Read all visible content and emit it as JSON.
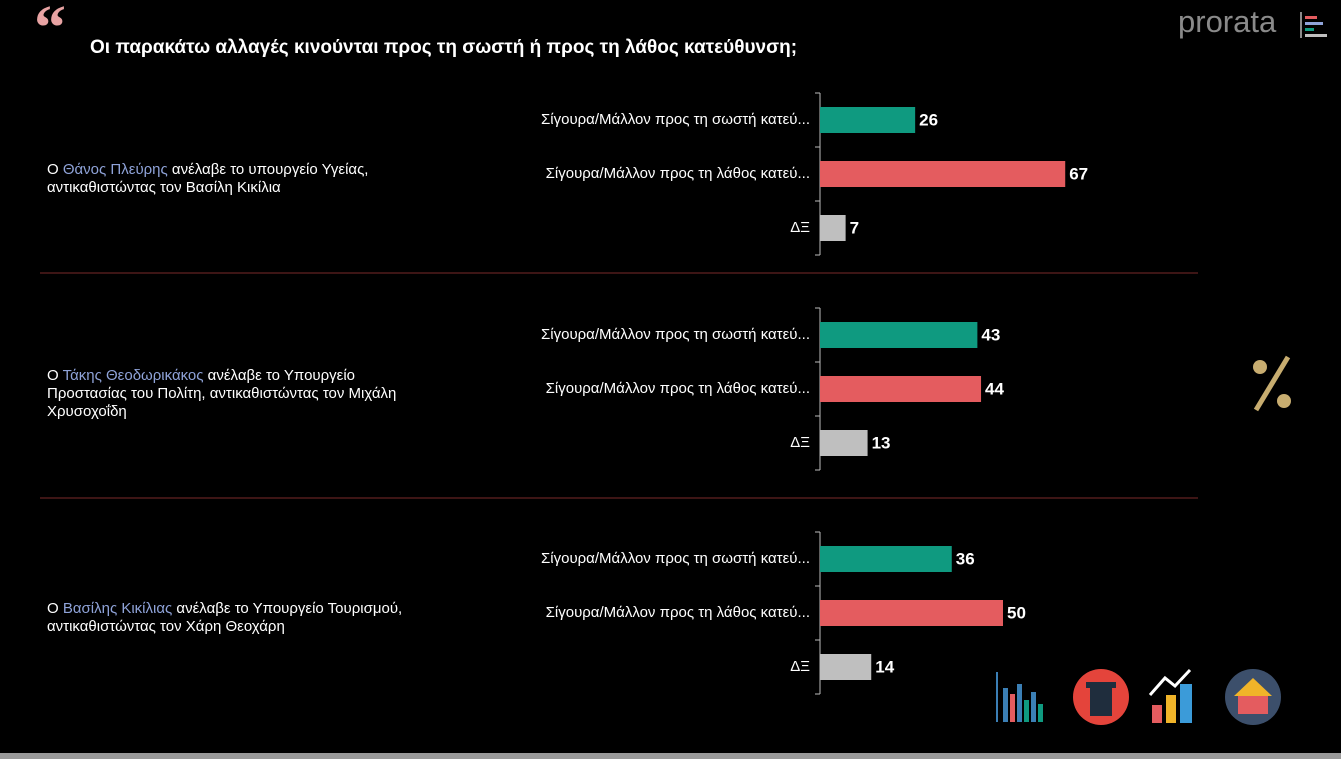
{
  "title": "Οι παρακάτω αλλαγές κινούνται προς τη σωστή ή προς τη λάθος κατεύθυνση;",
  "logo": "prorata",
  "chart_data": [
    {
      "type": "bar",
      "statement": {
        "before": "Ο ",
        "name": "Θάνος Πλεύρης",
        "after": " ανέλαβε το υπουργείο Υγείας, αντικαθιστώντας τον Βασίλη Κικίλια"
      },
      "categories": [
        "Σίγουρα/Μάλλον προς τη σωστή κατεύ...",
        "Σίγουρα/Μάλλον προς τη λάθος κατεύ...",
        "ΔΞ"
      ],
      "values": [
        26,
        67,
        7
      ],
      "colors": [
        "#0f9a80",
        "#e45c5f",
        "#bfbfbf"
      ],
      "xlim": [
        0,
        100
      ]
    },
    {
      "type": "bar",
      "statement": {
        "before": "Ο ",
        "name": "Τάκης Θεοδωρικάκος",
        "after": " ανέλαβε το Υπουργείο Προστασίας του Πολίτη, αντικαθιστώντας τον Μιχάλη Χρυσοχοΐδη"
      },
      "categories": [
        "Σίγουρα/Μάλλον προς τη σωστή κατεύ...",
        "Σίγουρα/Μάλλον προς τη λάθος κατεύ...",
        "ΔΞ"
      ],
      "values": [
        43,
        44,
        13
      ],
      "colors": [
        "#0f9a80",
        "#e45c5f",
        "#bfbfbf"
      ],
      "xlim": [
        0,
        100
      ]
    },
    {
      "type": "bar",
      "statement": {
        "before": "Ο ",
        "name": "Βασίλης Κικίλιας",
        "after": " ανέλαβε το Υπουργείο Τουρισμού, αντικαθιστώντας τον Χάρη Θεοχάρη"
      },
      "categories": [
        "Σίγουρα/Μάλλον προς τη σωστή κατεύ...",
        "Σίγουρα/Μάλλον προς τη λάθος κατεύ...",
        "ΔΞ"
      ],
      "values": [
        36,
        50,
        14
      ],
      "colors": [
        "#0f9a80",
        "#e45c5f",
        "#bfbfbf"
      ],
      "xlim": [
        0,
        100
      ]
    }
  ]
}
